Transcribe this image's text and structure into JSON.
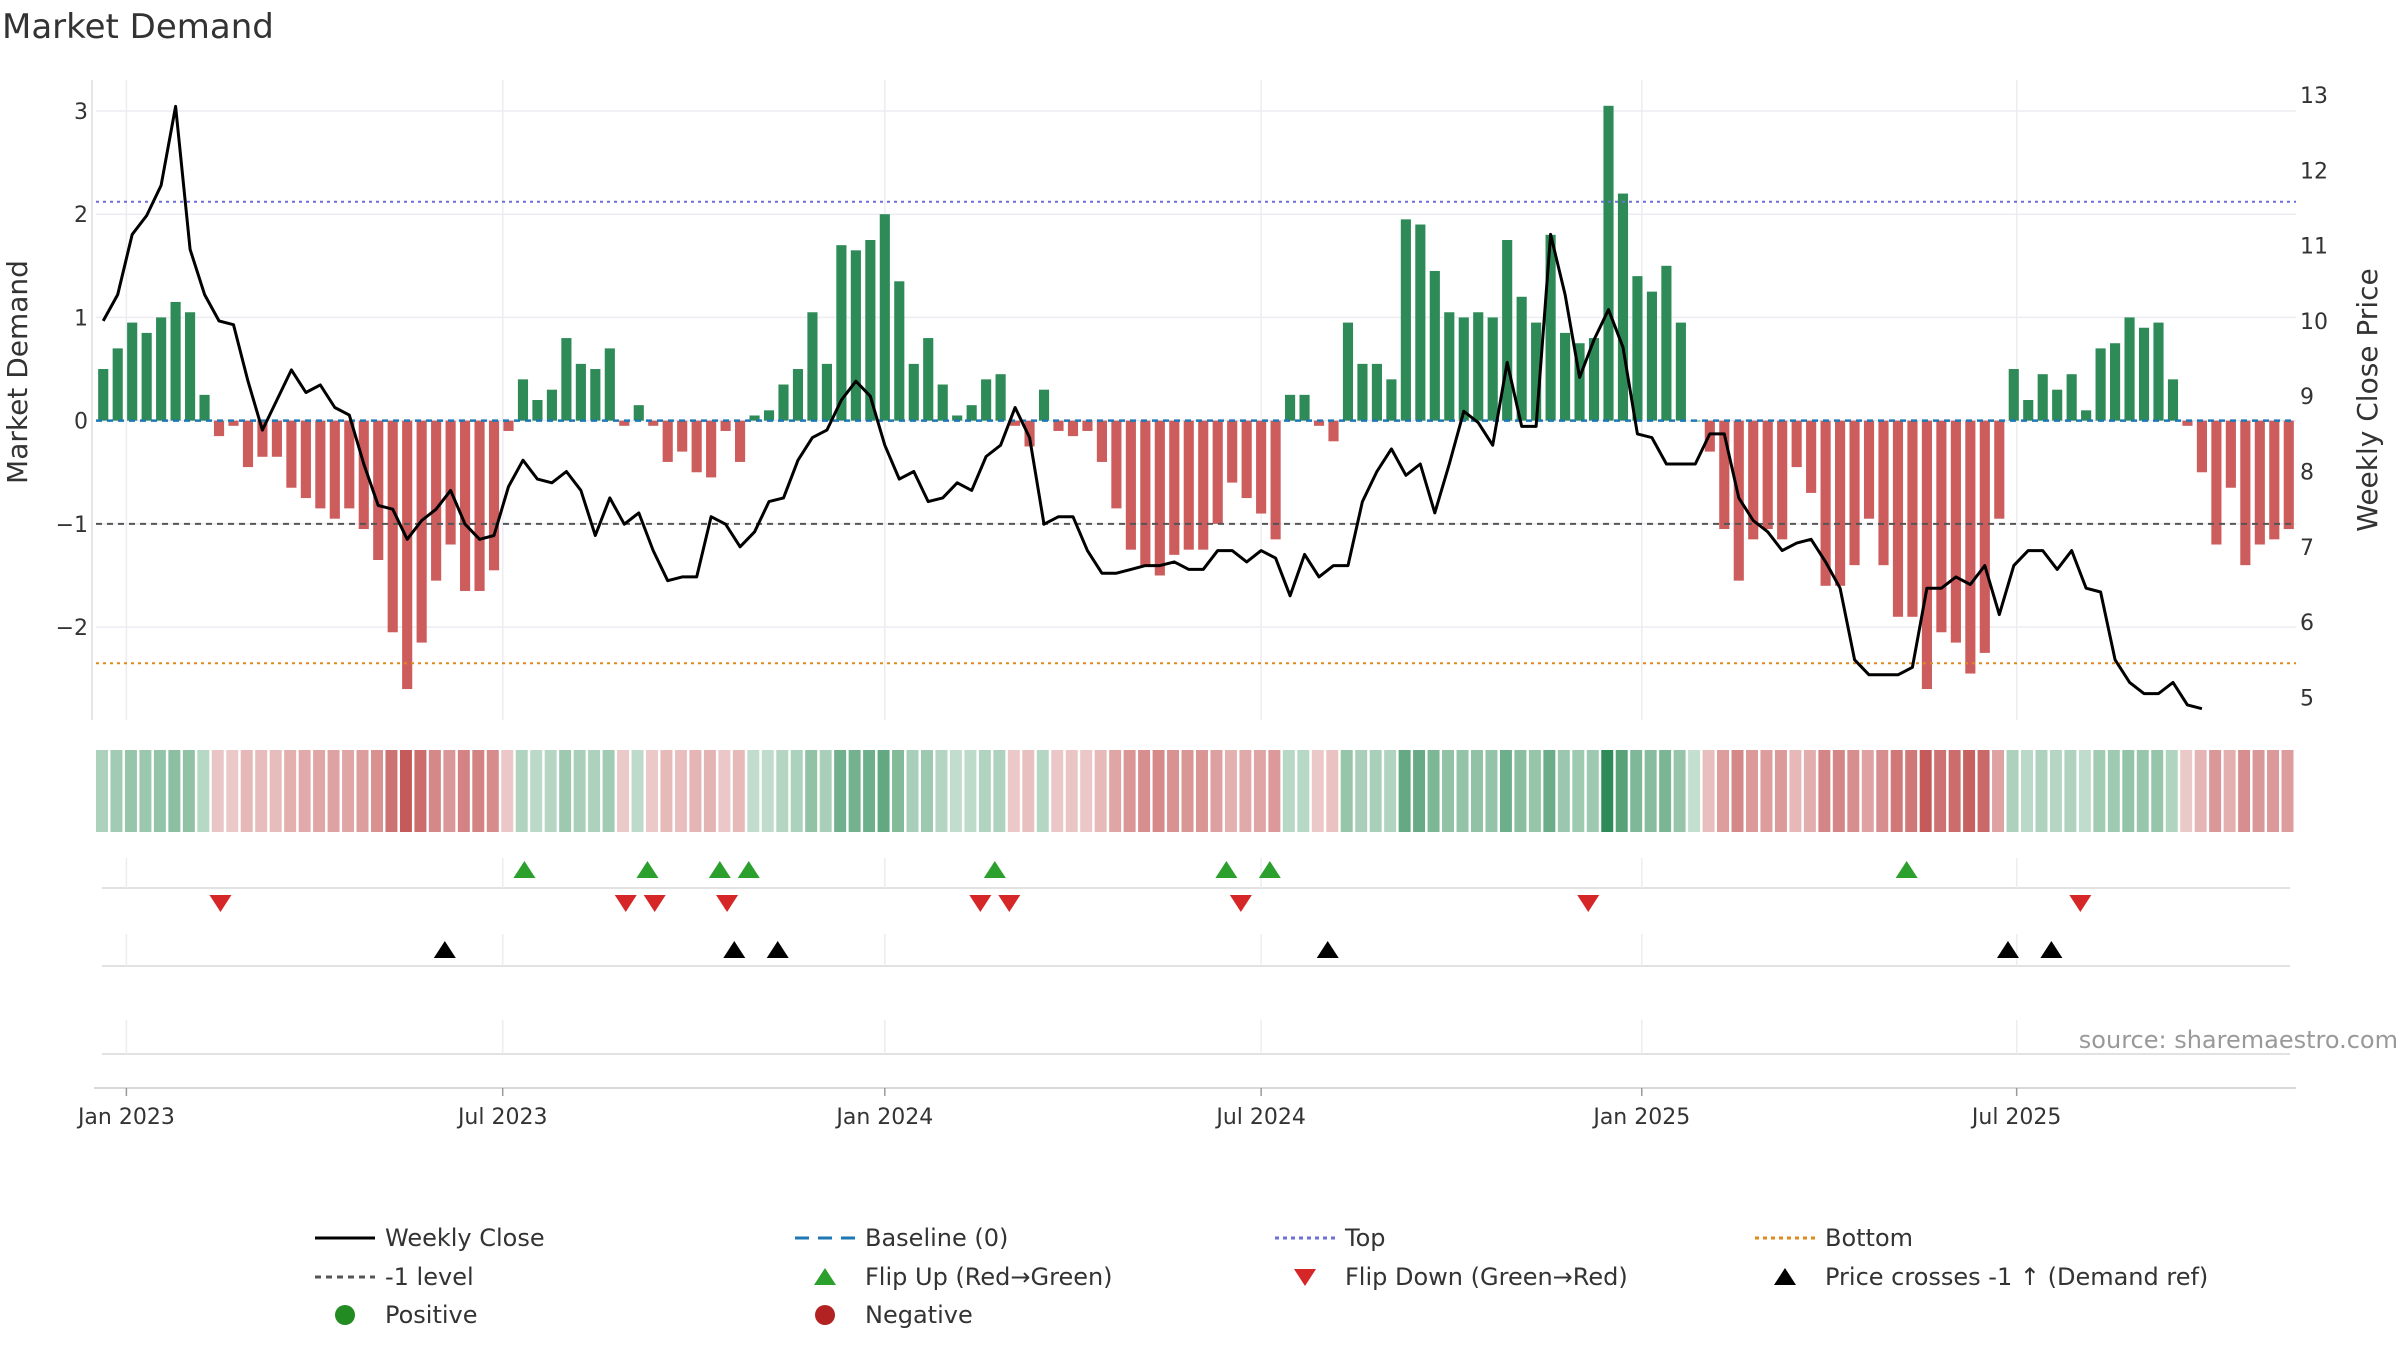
{
  "chart_data": {
    "type": "bar+line",
    "title": "Market Demand",
    "ylabel_left": "Market Demand",
    "ylabel_right": "Weekly Close Price",
    "ylim_left": [
      -2.9,
      3.3
    ],
    "ylim_right": [
      4.7,
      13.2
    ],
    "yticks_left": [
      3,
      2,
      1,
      0,
      -1,
      -2
    ],
    "yticks_left_labels": [
      "3",
      "2",
      "1",
      "0",
      "−1",
      "−2"
    ],
    "yticks_right": [
      13,
      12,
      11,
      10,
      9,
      8,
      7,
      6,
      5
    ],
    "yticks_right_labels": [
      "13",
      "12",
      "11",
      "10",
      "9",
      "8",
      "7",
      "6",
      "5"
    ],
    "xticks": [
      {
        "label": "Jan 2023",
        "week": 0
      },
      {
        "label": "Jul 2023",
        "week": 26
      },
      {
        "label": "Jan 2024",
        "week": 52.4
      },
      {
        "label": "Jul 2024",
        "week": 78.4
      },
      {
        "label": "Jan 2025",
        "week": 104.7
      },
      {
        "label": "Jul 2025",
        "week": 130.6
      }
    ],
    "week_offset": -1.6,
    "bar_values": [
      0.5,
      0.7,
      0.95,
      0.85,
      1.0,
      1.15,
      1.05,
      0.25,
      -0.15,
      -0.05,
      -0.45,
      -0.35,
      -0.35,
      -0.65,
      -0.75,
      -0.85,
      -0.95,
      -0.85,
      -1.05,
      -1.35,
      -2.05,
      -2.6,
      -2.15,
      -1.55,
      -1.2,
      -1.65,
      -1.65,
      -1.45,
      -0.1,
      0.4,
      0.2,
      0.3,
      0.8,
      0.55,
      0.5,
      0.7,
      -0.05,
      0.15,
      -0.05,
      -0.4,
      -0.3,
      -0.5,
      -0.55,
      -0.1,
      -0.4,
      0.05,
      0.1,
      0.35,
      0.5,
      1.05,
      0.55,
      1.7,
      1.65,
      1.75,
      2.0,
      1.35,
      0.55,
      0.8,
      0.35,
      0.05,
      0.15,
      0.4,
      0.45,
      -0.05,
      -0.25,
      0.3,
      -0.1,
      -0.15,
      -0.1,
      -0.4,
      -0.85,
      -1.25,
      -1.4,
      -1.5,
      -1.3,
      -1.25,
      -1.25,
      -1.0,
      -0.6,
      -0.75,
      -0.9,
      -1.15,
      0.25,
      0.25,
      -0.05,
      -0.2,
      0.95,
      0.55,
      0.55,
      0.4,
      1.95,
      1.9,
      1.45,
      1.05,
      1.0,
      1.05,
      1.0,
      1.75,
      1.2,
      0.95,
      1.8,
      0.85,
      0.75,
      0.8,
      3.05,
      2.2,
      1.4,
      1.25,
      1.5,
      0.95,
      0.0,
      -0.3,
      -1.05,
      -1.55,
      -1.15,
      -1.05,
      -1.15,
      -0.45,
      -0.7,
      -1.6,
      -1.6,
      -1.4,
      -0.95,
      -1.4,
      -1.9,
      -1.9,
      -2.6,
      -2.05,
      -2.15,
      -2.45,
      -2.25,
      -0.95,
      0.5,
      0.2,
      0.45,
      0.3,
      0.45,
      0.1,
      0.7,
      0.75,
      1.0,
      0.9,
      0.95,
      0.4,
      -0.05,
      -0.5,
      -1.2,
      -0.65,
      -1.4,
      -1.2,
      -1.15,
      -1.05
    ],
    "weekly_close": [
      10.0,
      10.35,
      11.15,
      11.4,
      11.8,
      12.85,
      10.95,
      10.35,
      10.0,
      9.95,
      9.2,
      8.55,
      8.95,
      9.35,
      9.05,
      9.15,
      8.85,
      8.75,
      8.1,
      7.55,
      7.5,
      7.1,
      7.35,
      7.5,
      7.75,
      7.3,
      7.1,
      7.15,
      7.8,
      8.15,
      7.9,
      7.85,
      8.0,
      7.75,
      7.15,
      7.65,
      7.3,
      7.45,
      6.95,
      6.55,
      6.6,
      6.6,
      7.4,
      7.3,
      7.0,
      7.2,
      7.6,
      7.65,
      8.15,
      8.45,
      8.55,
      8.95,
      9.2,
      9.0,
      8.35,
      7.9,
      8.0,
      7.6,
      7.65,
      7.85,
      7.75,
      8.2,
      8.35,
      8.85,
      8.45,
      7.3,
      7.4,
      7.4,
      6.95,
      6.65,
      6.65,
      6.7,
      6.75,
      6.75,
      6.8,
      6.7,
      6.7,
      6.95,
      6.95,
      6.8,
      6.95,
      6.85,
      6.35,
      6.9,
      6.6,
      6.75,
      6.75,
      7.6,
      8.0,
      8.3,
      7.95,
      8.1,
      7.45,
      8.1,
      8.8,
      8.65,
      8.35,
      9.45,
      8.6,
      8.6,
      11.15,
      10.35,
      9.25,
      9.75,
      10.15,
      9.65,
      8.5,
      8.45,
      8.1,
      8.1,
      8.1,
      8.5,
      8.5,
      7.65,
      7.35,
      7.2,
      6.95,
      7.05,
      7.1,
      6.8,
      6.45,
      5.5,
      5.3,
      5.3,
      5.3,
      5.4,
      6.45,
      6.45,
      6.6,
      6.5,
      6.75,
      6.1,
      6.75,
      6.95,
      6.95,
      6.7,
      6.95,
      6.45,
      6.4,
      5.5,
      5.2,
      5.05,
      5.05,
      5.2,
      4.9,
      4.85
    ],
    "series": [
      {
        "name": "Weekly Close",
        "color": "#000000",
        "style": "solid"
      },
      {
        "name": "Baseline (0)",
        "color": "#1f77b4",
        "style": "dashed",
        "value": 0
      },
      {
        "name": "Top",
        "color": "#6f6fd8",
        "style": "dotted",
        "value": 2.12
      },
      {
        "name": "Bottom",
        "color": "#e08a1e",
        "style": "dotted",
        "value": -2.35
      },
      {
        "name": "-1 level",
        "color": "#555555",
        "style": "dashed",
        "value": -1.0
      }
    ],
    "flip_up_weeks": [
      27.5,
      36,
      41,
      43,
      60,
      76,
      79,
      123
    ],
    "flip_down_weeks": [
      6.5,
      34.5,
      36.5,
      41.5,
      59,
      61,
      77,
      101,
      135
    ],
    "price_cross_weeks": [
      22,
      42,
      45,
      83,
      130,
      133
    ],
    "colors": {
      "positive_bar": "#2e8b57",
      "negative_bar": "#cd5c5c",
      "flip_up": "#2ca02c",
      "flip_down": "#d62728",
      "cross": "#000000"
    },
    "legend": [
      {
        "label": "Weekly Close",
        "kind": "line",
        "color": "#000000",
        "style": "solid"
      },
      {
        "label": "Baseline (0)",
        "kind": "line",
        "color": "#1f77b4",
        "style": "dashed"
      },
      {
        "label": "Top",
        "kind": "line",
        "color": "#6f6fd8",
        "style": "dotted"
      },
      {
        "label": "Bottom",
        "kind": "line",
        "color": "#e08a1e",
        "style": "dotted"
      },
      {
        "label": "-1 level",
        "kind": "line",
        "color": "#555555",
        "style": "dashed"
      },
      {
        "label": "Flip Up (Red→Green)",
        "kind": "tri-up",
        "color": "#2ca02c"
      },
      {
        "label": "Flip Down (Green→Red)",
        "kind": "tri-down",
        "color": "#d62728"
      },
      {
        "label": "Price crosses -1 ↑ (Demand ref)",
        "kind": "tri-up",
        "color": "#000000"
      },
      {
        "label": "Positive",
        "kind": "dot",
        "color": "#228b22"
      },
      {
        "label": "Negative",
        "kind": "dot",
        "color": "#b22222"
      }
    ],
    "source": "source: sharemaestro.com"
  }
}
